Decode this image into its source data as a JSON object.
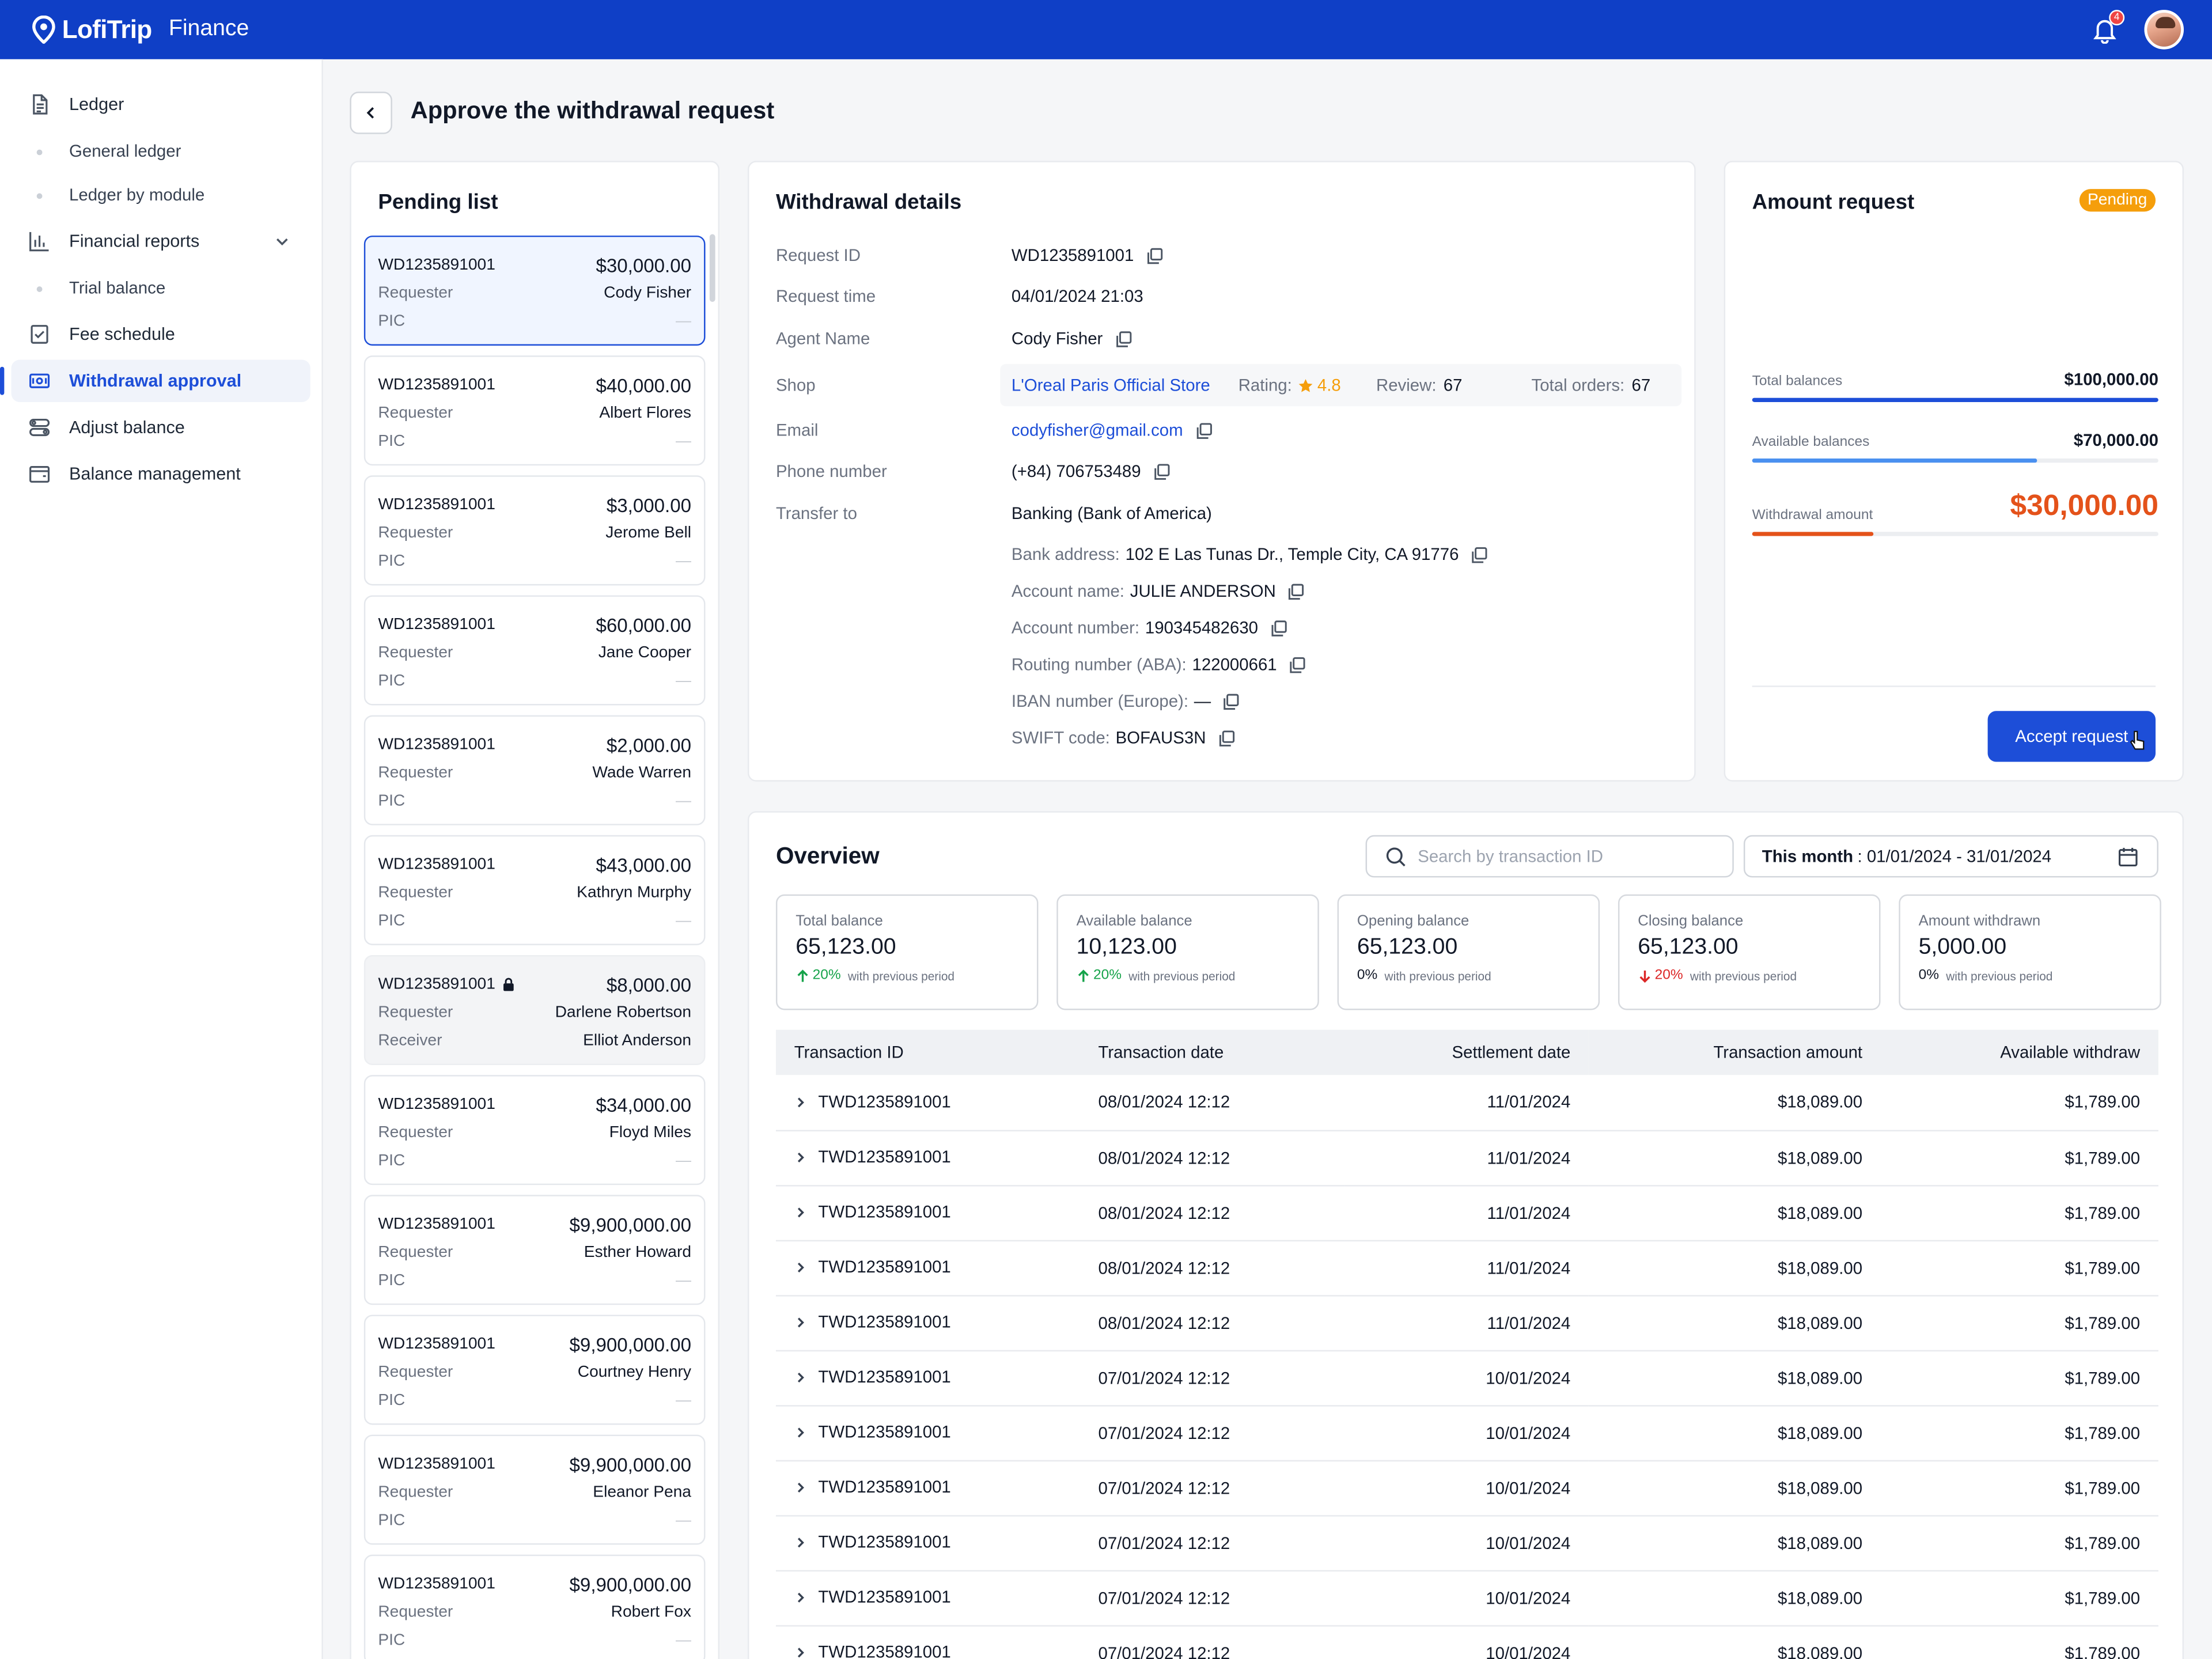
{
  "app": {
    "brand": "LofiTrip",
    "name": "Finance",
    "notifications": "4"
  },
  "sidebar": {
    "items": [
      {
        "label": "Ledger",
        "icon": "document-icon"
      },
      {
        "label": "General ledger",
        "sub": true
      },
      {
        "label": "Ledger by module",
        "sub": true
      },
      {
        "label": "Financial reports",
        "icon": "bar-chart-icon"
      },
      {
        "label": "Trial balance",
        "sub": true
      },
      {
        "label": "Fee schedule",
        "icon": "checklist-icon"
      },
      {
        "label": "Withdrawal approval",
        "icon": "cash-icon",
        "active": true
      },
      {
        "label": "Adjust balance",
        "icon": "toggles-icon"
      },
      {
        "label": "Balance management",
        "icon": "wallet-icon"
      }
    ]
  },
  "page": {
    "title": "Approve the withdrawal request"
  },
  "pending": {
    "title": "Pending list",
    "items": [
      {
        "id": "WD1235891001",
        "amount": "$30,000.00",
        "l1": "Requester",
        "v1": "Cody Fisher",
        "l2": "PIC",
        "v2": "—"
      },
      {
        "id": "WD1235891001",
        "amount": "$40,000.00",
        "l1": "Requester",
        "v1": "Albert Flores",
        "l2": "PIC",
        "v2": "—"
      },
      {
        "id": "WD1235891001",
        "amount": "$3,000.00",
        "l1": "Requester",
        "v1": "Jerome Bell",
        "l2": "PIC",
        "v2": "—"
      },
      {
        "id": "WD1235891001",
        "amount": "$60,000.00",
        "l1": "Requester",
        "v1": "Jane Cooper",
        "l2": "PIC",
        "v2": "—"
      },
      {
        "id": "WD1235891001",
        "amount": "$2,000.00",
        "l1": "Requester",
        "v1": "Wade Warren",
        "l2": "PIC",
        "v2": "—"
      },
      {
        "id": "WD1235891001",
        "amount": "$43,000.00",
        "l1": "Requester",
        "v1": "Kathryn Murphy",
        "l2": "PIC",
        "v2": "—"
      },
      {
        "id": "WD1235891001",
        "amount": "$8,000.00",
        "l1": "Requester",
        "v1": "Darlene Robertson",
        "l2": "Receiver",
        "v2": "Elliot Anderson"
      },
      {
        "id": "WD1235891001",
        "amount": "$34,000.00",
        "l1": "Requester",
        "v1": "Floyd Miles",
        "l2": "PIC",
        "v2": "—"
      },
      {
        "id": "WD1235891001",
        "amount": "$9,900,000.00",
        "l1": "Requester",
        "v1": "Esther Howard",
        "l2": "PIC",
        "v2": "—"
      },
      {
        "id": "WD1235891001",
        "amount": "$9,900,000.00",
        "l1": "Requester",
        "v1": "Courtney Henry",
        "l2": "PIC",
        "v2": "—"
      },
      {
        "id": "WD1235891001",
        "amount": "$9,900,000.00",
        "l1": "Requester",
        "v1": "Eleanor Pena",
        "l2": "PIC",
        "v2": "—"
      },
      {
        "id": "WD1235891001",
        "amount": "$9,900,000.00",
        "l1": "Requester",
        "v1": "Robert Fox",
        "l2": "PIC",
        "v2": "—"
      }
    ]
  },
  "details": {
    "title": "Withdrawal details",
    "request_id_label": "Request ID",
    "request_id": "WD1235891001",
    "request_time_label": "Request time",
    "request_time": "04/01/2024 21:03",
    "agent_label": "Agent Name",
    "agent": "Cody Fisher",
    "shop_label": "Shop",
    "shop": "L'Oreal Paris Official Store",
    "rating_label": "Rating:",
    "rating": "4.8",
    "review_label": "Review:",
    "review": "67",
    "orders_label": "Total orders:",
    "orders": "67",
    "email_label": "Email",
    "email": "codyfisher@gmail.com",
    "phone_label": "Phone number",
    "phone": "(+84) 706753489",
    "transfer_label": "Transfer to",
    "transfer": "Banking (Bank of America)",
    "bank": [
      {
        "label": "Bank address:",
        "value": "102 E Las Tunas Dr., Temple City, CA 91776"
      },
      {
        "label": "Account name:",
        "value": "JULIE ANDERSON"
      },
      {
        "label": "Account number:",
        "value": "190345482630"
      },
      {
        "label": "Routing number (ABA):",
        "value": "122000661"
      },
      {
        "label": "IBAN number (Europe):",
        "value": "—"
      },
      {
        "label": "SWIFT code:",
        "value": "BOFAUS3N"
      }
    ]
  },
  "amount": {
    "title": "Amount request",
    "status": "Pending",
    "total_label": "Total balances",
    "total": "$100,000.00",
    "total_fill": 1.0,
    "available_label": "Available balances",
    "available": "$70,000.00",
    "available_fill": 0.7,
    "withdraw_label": "Withdrawal amount",
    "withdraw": "$30,000.00",
    "withdraw_fill": 0.3,
    "accept_label": "Accept request"
  },
  "overview": {
    "title": "Overview",
    "search_placeholder": "Search by transaction ID",
    "range_label": "This month",
    "range_value": ": 01/01/2024 - 31/01/2024",
    "stats": [
      {
        "label": "Total balance",
        "value": "65,123.00",
        "change": "20%",
        "dir": "up",
        "note": "with previous period"
      },
      {
        "label": "Available balance",
        "value": "10,123.00",
        "change": "20%",
        "dir": "up",
        "note": "with previous period"
      },
      {
        "label": "Opening balance",
        "value": "65,123.00",
        "change": "0%",
        "dir": "none",
        "note": "with previous period"
      },
      {
        "label": "Closing balance",
        "value": "65,123.00",
        "change": "20%",
        "dir": "down",
        "note": "with previous period"
      },
      {
        "label": "Amount withdrawn",
        "value": "5,000.00",
        "change": "0%",
        "dir": "none",
        "note": "with previous period"
      }
    ],
    "columns": [
      "Transaction ID",
      "Transaction date",
      "Settlement date",
      "Transaction amount",
      "Available withdraw"
    ],
    "rows": [
      [
        "TWD1235891001",
        "08/01/2024 12:12",
        "11/01/2024",
        "$18,089.00",
        "$1,789.00"
      ],
      [
        "TWD1235891001",
        "08/01/2024 12:12",
        "11/01/2024",
        "$18,089.00",
        "$1,789.00"
      ],
      [
        "TWD1235891001",
        "08/01/2024 12:12",
        "11/01/2024",
        "$18,089.00",
        "$1,789.00"
      ],
      [
        "TWD1235891001",
        "08/01/2024 12:12",
        "11/01/2024",
        "$18,089.00",
        "$1,789.00"
      ],
      [
        "TWD1235891001",
        "08/01/2024 12:12",
        "11/01/2024",
        "$18,089.00",
        "$1,789.00"
      ],
      [
        "TWD1235891001",
        "07/01/2024 12:12",
        "10/01/2024",
        "$18,089.00",
        "$1,789.00"
      ],
      [
        "TWD1235891001",
        "07/01/2024 12:12",
        "10/01/2024",
        "$18,089.00",
        "$1,789.00"
      ],
      [
        "TWD1235891001",
        "07/01/2024 12:12",
        "10/01/2024",
        "$18,089.00",
        "$1,789.00"
      ],
      [
        "TWD1235891001",
        "07/01/2024 12:12",
        "10/01/2024",
        "$18,089.00",
        "$1,789.00"
      ],
      [
        "TWD1235891001",
        "07/01/2024 12:12",
        "10/01/2024",
        "$18,089.00",
        "$1,789.00"
      ],
      [
        "TWD1235891001",
        "07/01/2024 12:12",
        "10/01/2024",
        "$18,089.00",
        "$1,789.00"
      ]
    ]
  }
}
